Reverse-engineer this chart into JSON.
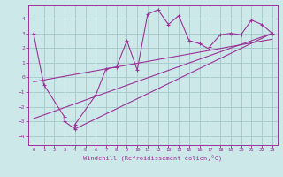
{
  "title": "",
  "xlabel": "Windchill (Refroidissement éolien,°C)",
  "bg_color": "#cde8e8",
  "grid_color": "#aacccc",
  "line_color": "#993399",
  "xlim": [
    -0.5,
    23.5
  ],
  "ylim": [
    -4.6,
    4.9
  ],
  "xticks": [
    0,
    1,
    2,
    3,
    4,
    5,
    6,
    7,
    8,
    9,
    10,
    11,
    12,
    13,
    14,
    15,
    16,
    17,
    18,
    19,
    20,
    21,
    22,
    23
  ],
  "yticks": [
    -4,
    -3,
    -2,
    -1,
    0,
    1,
    2,
    3,
    4
  ],
  "data_x": [
    0,
    1,
    3,
    3,
    4,
    4,
    6,
    7,
    8,
    9,
    10,
    11,
    12,
    13,
    14,
    15,
    16,
    17,
    17,
    18,
    19,
    20,
    21,
    22,
    23
  ],
  "data_y": [
    3.0,
    -0.5,
    -2.7,
    -3.0,
    -3.5,
    -3.2,
    -1.2,
    0.6,
    0.7,
    2.5,
    0.5,
    4.3,
    4.6,
    3.6,
    4.2,
    2.5,
    2.3,
    1.9,
    2.1,
    2.9,
    3.0,
    2.9,
    3.9,
    3.6,
    3.0
  ],
  "line1_x": [
    0,
    23
  ],
  "line1_y": [
    -2.8,
    3.0
  ],
  "line2_x": [
    0,
    23
  ],
  "line2_y": [
    -0.3,
    2.6
  ],
  "line3_x": [
    4,
    23
  ],
  "line3_y": [
    -3.5,
    3.0
  ]
}
